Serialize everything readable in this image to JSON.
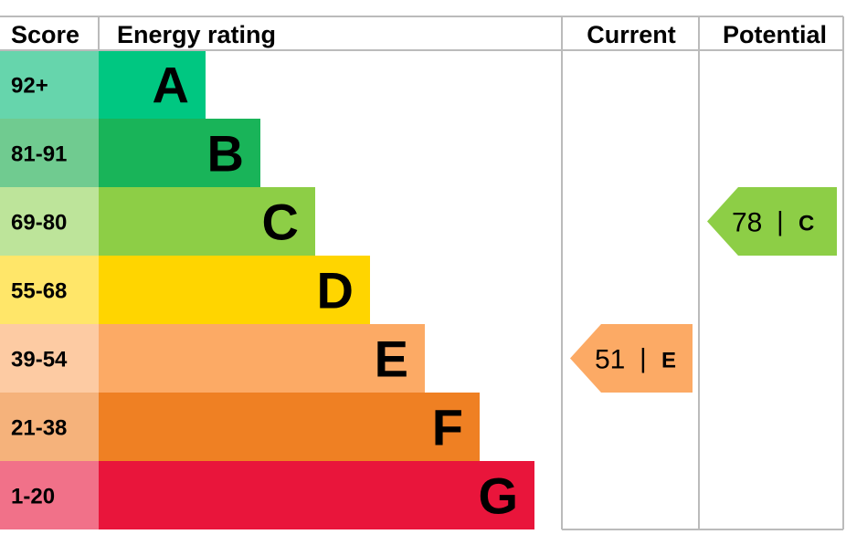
{
  "chart_data": {
    "type": "bar",
    "headers": {
      "score": "Score",
      "rating": "Energy rating",
      "current": "Current",
      "potential": "Potential"
    },
    "bands": [
      {
        "letter": "A",
        "score": "92+",
        "min": 92,
        "max": 100,
        "color": "#00c781",
        "score_bg": "#66d5ac"
      },
      {
        "letter": "B",
        "score": "81-91",
        "min": 81,
        "max": 91,
        "color": "#19b459",
        "score_bg": "#70cb90"
      },
      {
        "letter": "C",
        "score": "69-80",
        "min": 69,
        "max": 80,
        "color": "#8dce46",
        "score_bg": "#bde49a"
      },
      {
        "letter": "D",
        "score": "55-68",
        "min": 55,
        "max": 68,
        "color": "#ffd500",
        "score_bg": "#ffe669"
      },
      {
        "letter": "E",
        "score": "39-54",
        "min": 39,
        "max": 54,
        "color": "#fcaa65",
        "score_bg": "#fdcba3"
      },
      {
        "letter": "F",
        "score": "21-38",
        "min": 21,
        "max": 38,
        "color": "#ef8023",
        "score_bg": "#f5b27b"
      },
      {
        "letter": "G",
        "score": "1-20",
        "min": 1,
        "max": 20,
        "color": "#e9153b",
        "score_bg": "#f17189"
      }
    ],
    "current": {
      "value": 51,
      "band": "E",
      "value_text": "51",
      "separator": "|",
      "letter": "E"
    },
    "potential": {
      "value": 78,
      "band": "C",
      "value_text": "78",
      "separator": "|",
      "letter": "C"
    },
    "grid_color": "#bbbbbb"
  }
}
